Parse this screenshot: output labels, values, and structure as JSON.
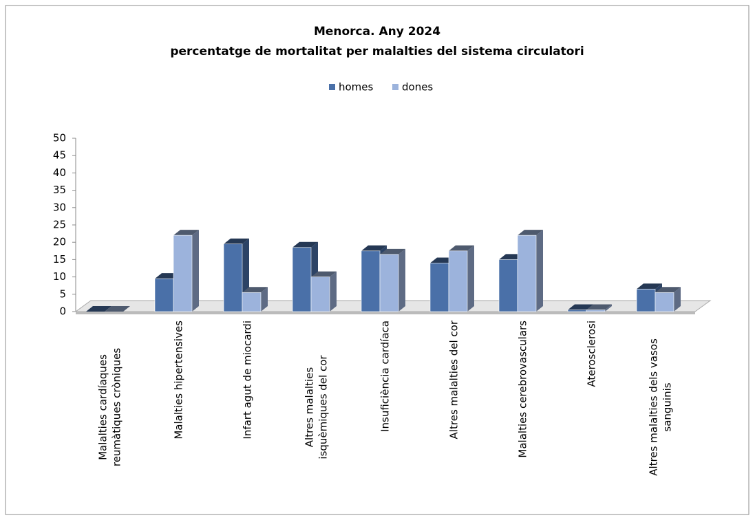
{
  "chart_data": {
    "type": "bar3d",
    "title": "Menorca. Any 2024",
    "subtitle": "percentatge de mortalitat per malalties del sistema circulatori",
    "categories": [
      [
        "Malalties cardíaques",
        "reumàtiques cròniques"
      ],
      [
        "Malalties hipertensives"
      ],
      [
        "Infart agut de miocardi"
      ],
      [
        "Altres malalties",
        "isquèmiques del cor"
      ],
      [
        "Insuficiència cardíaca"
      ],
      [
        "Altres malalties del cor"
      ],
      [
        "Malalties cerebrovasculars"
      ],
      [
        "Aterosclerosi"
      ],
      [
        "Altres malalties dels vasos",
        "sanguinis"
      ]
    ],
    "series": [
      {
        "name": "homes",
        "color": "#4a70a8",
        "values": [
          0,
          9.5,
          19.5,
          18.5,
          17.5,
          14,
          15,
          0.5,
          6.5
        ]
      },
      {
        "name": "dones",
        "color": "#9cb3dc",
        "values": [
          0,
          22,
          5.5,
          10,
          16.5,
          17.5,
          22,
          0.5,
          5.5
        ]
      }
    ],
    "ylim": [
      0,
      50
    ],
    "yticks": [
      0,
      5,
      10,
      15,
      20,
      25,
      30,
      35,
      40,
      45,
      50
    ],
    "legend": "top"
  }
}
